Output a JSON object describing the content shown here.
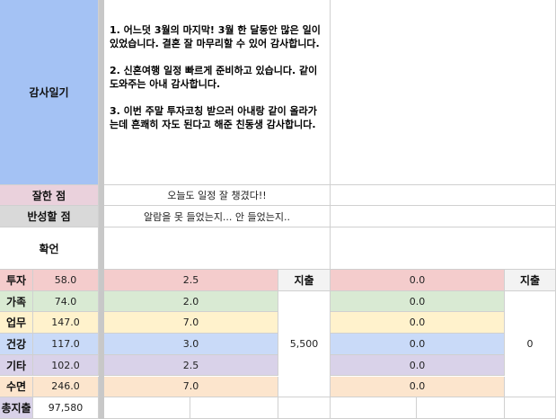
{
  "diary": {
    "label": "감사일기",
    "text": "1. 어느덧 3월의 마지막! 3월 한 달동안 많은 일이 있었습니다. 결혼 잘 마무리할 수 있어 감사합니다.\n\n2. 신혼여행 일정 빠르게 준비하고 있습니다. 같이 도와주는 아내 감사합니다.\n\n3. 이번 주말 투자코칭 받으러 아내랑 같이 올라가는데 흔쾌히 자도 된다고 해준 친동생 감사합니다."
  },
  "good": {
    "label": "잘한 점",
    "text": "오늘도 일정 잘 챙겼다!!"
  },
  "reflect": {
    "label": "반성할 점",
    "text": "알람을 못 들었는지... 안 들었는지.."
  },
  "affirm": {
    "label": "확언"
  },
  "categories": [
    {
      "name": "투자",
      "total": "58.0",
      "day1": "2.5",
      "day2": "0.0",
      "color": "#f4cccc"
    },
    {
      "name": "가족",
      "total": "74.0",
      "day1": "2.0",
      "day2": "0.0",
      "color": "#d9ead3"
    },
    {
      "name": "업무",
      "total": "147.0",
      "day1": "7.0",
      "day2": "0.0",
      "color": "#fff2cc"
    },
    {
      "name": "건강",
      "total": "117.0",
      "day1": "3.0",
      "day2": "0.0",
      "color": "#c9daf8"
    },
    {
      "name": "기타",
      "total": "102.0",
      "day1": "2.5",
      "day2": "0.0",
      "color": "#d9d2e9"
    },
    {
      "name": "수면",
      "total": "246.0",
      "day1": "7.0",
      "day2": "0.0",
      "color": "#fce5cd"
    }
  ],
  "expense": {
    "label": "지출",
    "day1": "5,500",
    "day2": "0"
  },
  "total_expense": {
    "label": "총지출",
    "value": "97,580"
  }
}
